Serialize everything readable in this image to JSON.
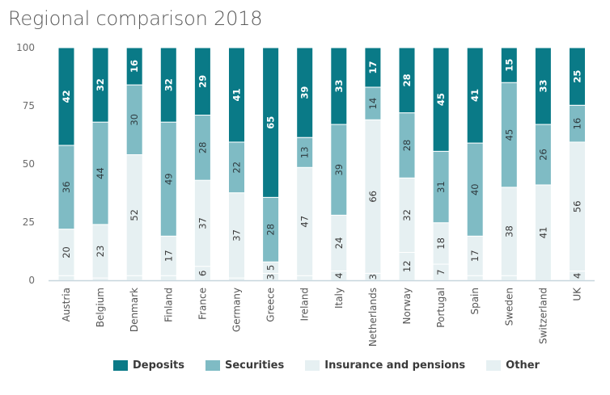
{
  "chart_data": {
    "type": "bar",
    "stacked": true,
    "orientation": "vertical",
    "title": "Regional comparison 2018",
    "xlabel": "",
    "ylabel": "",
    "ylim": [
      0,
      100
    ],
    "yticks": [
      0,
      25,
      50,
      75,
      100
    ],
    "grid": false,
    "legend_position": "bottom",
    "categories": [
      "Austria",
      "Belgium",
      "Denmark",
      "Finland",
      "France",
      "Germany",
      "Greece",
      "Ireland",
      "Italy",
      "Netherlands",
      "Norway",
      "Portugal",
      "Spain",
      "Sweden",
      "Switzerland",
      "UK"
    ],
    "series": [
      {
        "name": "Other",
        "color": "#e6f0f2",
        "values": [
          2,
          1,
          2,
          2,
          6,
          1,
          3,
          2,
          4,
          3,
          12,
          7,
          2,
          2,
          0,
          4
        ],
        "labels": [
          "",
          "",
          "",
          "",
          "6",
          "",
          "3",
          "",
          "4",
          "3",
          "12",
          "7",
          "",
          "",
          "",
          "4"
        ]
      },
      {
        "name": "Insurance and pensions",
        "color": "#e6f0f2",
        "values": [
          20,
          23,
          52,
          17,
          37,
          37,
          5,
          47,
          24,
          66,
          32,
          18,
          17,
          38,
          41,
          56
        ],
        "labels": [
          "20",
          "23",
          "52",
          "17",
          "37",
          "37",
          "5",
          "47",
          "24",
          "66",
          "32",
          "18",
          "17",
          "38",
          "41",
          "56"
        ]
      },
      {
        "name": "Securities",
        "color": "#7fbbc4",
        "values": [
          36,
          44,
          30,
          49,
          28,
          22,
          28,
          13,
          39,
          14,
          28,
          31,
          40,
          45,
          26,
          16
        ],
        "labels": [
          "36",
          "44",
          "30",
          "49",
          "28",
          "22",
          "28",
          "13",
          "39",
          "14",
          "28",
          "31",
          "40",
          "45",
          "26",
          "16"
        ]
      },
      {
        "name": "Deposits",
        "color": "#0a7a87",
        "values": [
          42,
          32,
          16,
          32,
          29,
          41,
          65,
          39,
          33,
          17,
          28,
          45,
          41,
          15,
          33,
          25
        ],
        "labels": [
          "42",
          "32",
          "16",
          "32",
          "29",
          "41",
          "65",
          "39",
          "33",
          "17",
          "28",
          "45",
          "41",
          "15",
          "33",
          "25"
        ]
      }
    ],
    "legend": [
      {
        "name": "Deposits",
        "color": "#0a7a87"
      },
      {
        "name": "Securities",
        "color": "#7fbbc4"
      },
      {
        "name": "Insurance and pensions",
        "color": "#e6f0f2"
      },
      {
        "name": "Other",
        "color": "#e6f0f2"
      }
    ]
  }
}
